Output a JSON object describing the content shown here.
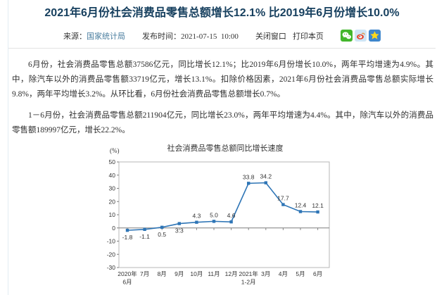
{
  "page": {
    "title": "2021年6月份社会消费品零售总额增长12.1% 比2019年6月份增长10.0%",
    "meta": {
      "source_label": "来源：",
      "source": "国家统计局",
      "publish_label": "发布时间：",
      "publish_time": "2021-07-15  10:00",
      "close_window": "关闭窗口",
      "print_page": "打印本页",
      "share_icons": [
        "wechat-icon",
        "weibo-icon",
        "qzone-icon"
      ]
    },
    "paragraphs": [
      "6月份，社会消费品零售总额37586亿元，同比增长12.1%；比2019年6月份增长10.0%，两年平均增速为4.9%。其中，除汽车以外的消费品零售额33719亿元，增长13.1%。扣除价格因素，2021年6月份社会消费品零售总额实际增长9.8%，两年平均增长3.2%。从环比看，6月份社会消费品零售总额增长0.7%。",
      "1－6月份，社会消费品零售总额211904亿元，同比增长23.0%，两年平均增速为4.4%。其中，除汽车以外的消费品零售额189997亿元，增长22.2%。"
    ]
  },
  "chart_data": {
    "type": "line",
    "title": "社会消费品零售总额同比增长速度",
    "unit_label": "(%)",
    "categories": [
      [
        "2020年",
        "6月"
      ],
      [
        "7月"
      ],
      [
        "8月"
      ],
      [
        "9月"
      ],
      [
        "10月"
      ],
      [
        "11月"
      ],
      [
        "12月"
      ],
      [
        "2021年",
        "1-2月"
      ],
      [
        "3月"
      ],
      [
        "4月"
      ],
      [
        "5月"
      ],
      [
        "6月"
      ]
    ],
    "values": [
      -1.8,
      -1.1,
      0.5,
      3.3,
      4.3,
      5.0,
      4.6,
      33.8,
      34.2,
      17.7,
      12.4,
      12.1
    ],
    "label_position": [
      "below",
      "below",
      "below",
      "below",
      "above",
      "above",
      "above",
      "above",
      "above",
      "above",
      "above",
      "above"
    ],
    "ylim": [
      -30,
      50
    ],
    "ytick_step": 10,
    "grid": false,
    "legend": "none",
    "line_color": "#2e75b6",
    "axis_color": "#7f7f7f",
    "border_color": "#b7b7b7",
    "label_color": "#333333"
  }
}
